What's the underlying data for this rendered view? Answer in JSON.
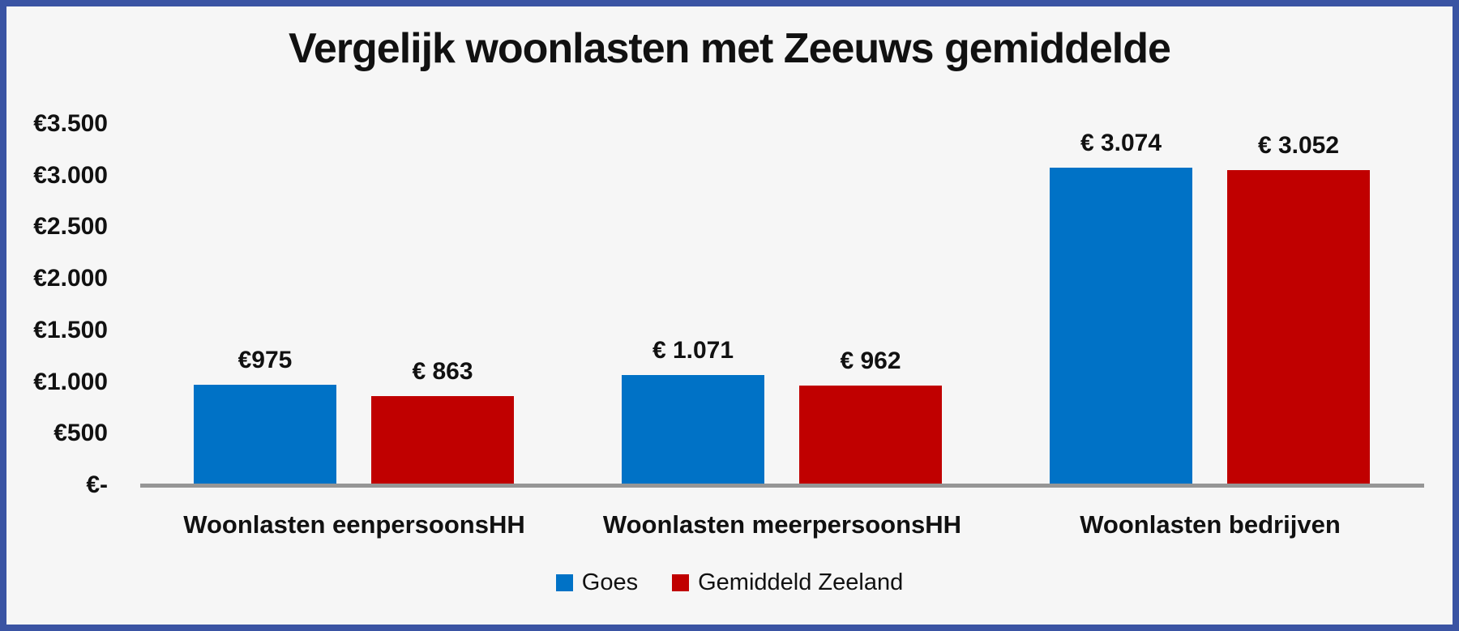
{
  "frame": {
    "background_color": "#F6F6F6",
    "border_color": "#3A54A3",
    "axis_line_color": "#969696",
    "text_color": "#111111"
  },
  "chart_data": {
    "type": "bar",
    "title": "Vergelijk woonlasten met Zeeuws gemiddelde",
    "categories": [
      "Woonlasten eenpersoonsHH",
      "Woonlasten meerpersoonsHH",
      "Woonlasten bedrijven"
    ],
    "series": [
      {
        "name": "Goes",
        "color": "#0072C6",
        "values": [
          975,
          1071,
          3074
        ],
        "value_labels": [
          "€975",
          "€ 1.071",
          "€ 3.074"
        ]
      },
      {
        "name": "Gemiddeld Zeeland",
        "color": "#C00000",
        "values": [
          863,
          962,
          3052
        ],
        "value_labels": [
          "€ 863",
          "€ 962",
          "€ 3.052"
        ]
      }
    ],
    "y_axis": {
      "min": 0,
      "max": 3500,
      "ticks": [
        {
          "label": "€3.500",
          "value": 3500
        },
        {
          "label": "€3.000",
          "value": 3000
        },
        {
          "label": "€2.500",
          "value": 2500
        },
        {
          "label": "€2.000",
          "value": 2000
        },
        {
          "label": "€1.500",
          "value": 1500
        },
        {
          "label": "€1.000",
          "value": 1000
        },
        {
          "label": "€500",
          "value": 500
        },
        {
          "label": "€-",
          "value": 0
        }
      ]
    },
    "xlabel": "",
    "ylabel": "",
    "grid": false,
    "legend_position": "bottom"
  }
}
